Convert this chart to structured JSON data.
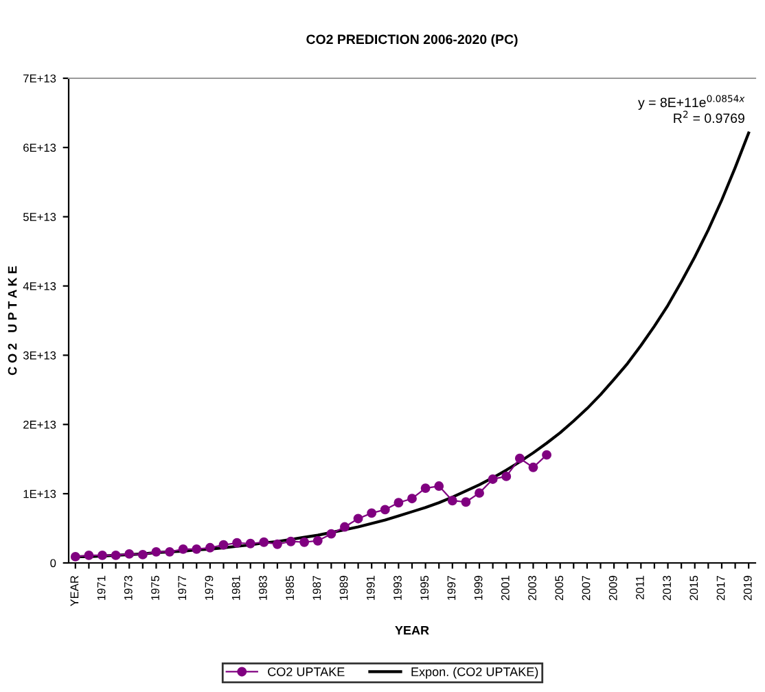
{
  "chart_data": {
    "type": "line",
    "title": "CO2 PREDICTION 2006-2020 (PC)",
    "xlabel": "YEAR",
    "ylabel": "C O 2   U P T A K E",
    "categories": [
      "YEAR",
      null,
      "1971",
      null,
      "1973",
      null,
      "1975",
      null,
      "1977",
      null,
      "1979",
      null,
      "1981",
      null,
      "1983",
      null,
      "1985",
      null,
      "1987",
      null,
      "1989",
      null,
      "1991",
      null,
      "1993",
      null,
      "1995",
      null,
      "1997",
      null,
      "1999",
      null,
      "2001",
      null,
      "2003",
      null,
      "2005",
      null,
      "2007",
      null,
      "2009",
      null,
      "2011",
      null,
      "2013",
      null,
      "2015",
      null,
      "2017",
      null,
      "2019"
    ],
    "series": [
      {
        "name": "CO2 UPTAKE",
        "color": "#800080",
        "marker": "circle",
        "values": [
          900000000000.0,
          1100000000000.0,
          1100000000000.0,
          1100000000000.0,
          1300000000000.0,
          1200000000000.0,
          1600000000000.0,
          1600000000000.0,
          2000000000000.0,
          2000000000000.0,
          2200000000000.0,
          2600000000000.0,
          2900000000000.0,
          2800000000000.0,
          3000000000000.0,
          2700000000000.0,
          3100000000000.0,
          3000000000000.0,
          3200000000000.0,
          4200000000000.0,
          5200000000000.0,
          6400000000000.0,
          7200000000000.0,
          7700000000000.0,
          8700000000000.0,
          9300000000000.0,
          10800000000000.0,
          11100000000000.0,
          9000000000000.0,
          8800000000000.0,
          10100000000000.0,
          12100000000000.0,
          12500000000000.0,
          15100000000000.0,
          13800000000000.0,
          15600000000000.0,
          null,
          null,
          null,
          null,
          null,
          null,
          null,
          null,
          null,
          null,
          null,
          null,
          null,
          null,
          null
        ]
      },
      {
        "name": "Expon. (CO2 UPTAKE)",
        "color": "#000000",
        "marker": "none",
        "values": [
          900000000000.0,
          900000000000.0,
          1000000000000.0,
          1100000000000.0,
          1200000000000.0,
          1300000000000.0,
          1500000000000.0,
          1600000000000.0,
          1700000000000.0,
          1900000000000.0,
          2000000000000.0,
          2200000000000.0,
          2400000000000.0,
          2600000000000.0,
          2900000000000.0,
          3100000000000.0,
          3400000000000.0,
          3700000000000.0,
          4000000000000.0,
          4400000000000.0,
          4800000000000.0,
          5200000000000.0,
          5700000000000.0,
          6200000000000.0,
          6800000000000.0,
          7400000000000.0,
          8000000000000.0,
          8700000000000.0,
          9500000000000.0,
          10400000000000.0,
          11300000000000.0,
          12300000000000.0,
          13400000000000.0,
          14600000000000.0,
          15900000000000.0,
          17300000000000.0,
          18800000000000.0,
          20500000000000.0,
          22300000000000.0,
          24300000000000.0,
          26500000000000.0,
          28800000000000.0,
          31400000000000.0,
          34200000000000.0,
          37200000000000.0,
          40600000000000.0,
          44200000000000.0,
          48100000000000.0,
          52400000000000.0,
          57100000000000.0,
          62100000000000.0
        ]
      }
    ],
    "ylim": [
      0,
      70000000000000.0
    ],
    "yticks": [
      0,
      {
        "value": 10000000000000.0,
        "label": "1E+13"
      },
      {
        "value": 20000000000000.0,
        "label": "2E+13"
      },
      {
        "value": 30000000000000.0,
        "label": "3E+13"
      },
      {
        "value": 40000000000000.0,
        "label": "4E+13"
      },
      {
        "value": 50000000000000.0,
        "label": "5E+13"
      },
      {
        "value": 60000000000000.0,
        "label": "6E+13"
      },
      {
        "value": 70000000000000.0,
        "label": "7E+13"
      }
    ],
    "annotations": [
      "y = 8E+11e$^{0.0854x}$",
      "R$^{2}$ = 0.9769"
    ],
    "grid": false,
    "legend": "bottom",
    "line_style": "solid"
  }
}
